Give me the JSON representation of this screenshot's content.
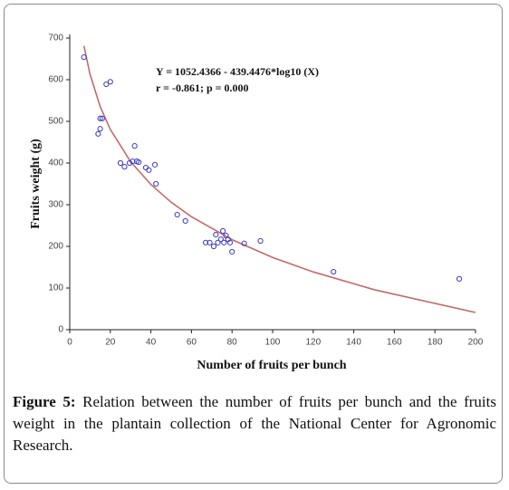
{
  "chart_data": {
    "type": "scatter",
    "annotations": [
      "Y = 1052.4366 - 439.4476*log10 (X)",
      "r = -0.861; p = 0.000"
    ],
    "x_label": "Number of fruits per bunch",
    "y_label": "Fruits weight (g)",
    "x": [
      7,
      14,
      15,
      15,
      16,
      18,
      20,
      25,
      27,
      29.5,
      31,
      32,
      33,
      34,
      37.5,
      39,
      42,
      42.5,
      53,
      57,
      67,
      69,
      71,
      72,
      73,
      74.5,
      75.5,
      76,
      77,
      78,
      79,
      80,
      86,
      94,
      130,
      192
    ],
    "values": [
      654,
      470,
      482,
      507,
      507,
      589,
      595,
      400,
      391,
      400,
      404,
      441,
      404,
      402,
      389,
      383,
      396,
      350,
      276,
      261,
      209,
      209,
      200,
      228,
      209,
      217,
      237,
      209,
      226,
      217,
      209,
      187,
      207,
      213,
      139,
      122
    ],
    "color": "#3b3bc4",
    "fit": {
      "color": "#c46a6a",
      "x": [
        7,
        10,
        15,
        20,
        30,
        40,
        50,
        60,
        80,
        100,
        120,
        150,
        200
      ],
      "values": [
        681.1,
        613.0,
        535.6,
        480.7,
        403.3,
        348.4,
        305.8,
        271.0,
        216.1,
        173.5,
        138.7,
        96.1,
        41.3
      ]
    },
    "xlim": [
      0,
      200
    ],
    "xticks": [
      0,
      20,
      40,
      60,
      80,
      100,
      120,
      140,
      160,
      180,
      200
    ],
    "ylim": [
      0,
      700
    ],
    "yticks": [
      0,
      100,
      200,
      300,
      400,
      500,
      600,
      700
    ],
    "grid": false,
    "caption_label": "Figure 5:",
    "caption": "Relation between the number of fruits per bunch and the fruits weight in the plantain collection of the National Center for Agronomic Research."
  }
}
